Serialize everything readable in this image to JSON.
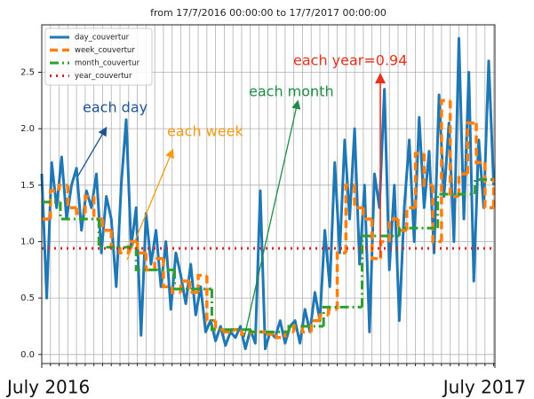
{
  "chart_data": {
    "type": "line",
    "title": "from 17/7/2016 00:00:00 to 17/7/2017 00:00:00",
    "xlim": [
      0,
      365
    ],
    "xticks": [
      {
        "value": 0,
        "label": "July 2016"
      },
      {
        "value": 365,
        "label": "July 2017"
      }
    ],
    "ylim": [
      -0.08,
      2.92
    ],
    "yticks": [
      {
        "value": 0,
        "label": "0.0"
      },
      0.5,
      {
        "value": 1,
        "label": "1.0"
      },
      1.5,
      {
        "value": 2,
        "label": "2.0"
      },
      2.5
    ],
    "grid": true,
    "legend": "upper left",
    "series": [
      {
        "name": "day_couvertur",
        "color": "#1f77b4",
        "style": "solid",
        "x": [
          0,
          4,
          8,
          12,
          16,
          20,
          24,
          28,
          32,
          36,
          40,
          44,
          48,
          52,
          56,
          60,
          64,
          68,
          72,
          76,
          80,
          84,
          88,
          92,
          96,
          100,
          104,
          108,
          112,
          116,
          120,
          124,
          128,
          132,
          136,
          140,
          144,
          148,
          152,
          156,
          160,
          164,
          168,
          172,
          176,
          180,
          184,
          188,
          192,
          196,
          200,
          204,
          208,
          212,
          216,
          220,
          224,
          228,
          232,
          236,
          240,
          244,
          248,
          252,
          256,
          260,
          264,
          268,
          272,
          276,
          280,
          284,
          288,
          292,
          296,
          300,
          304,
          308,
          312,
          316,
          320,
          324,
          328,
          332,
          336,
          340,
          344,
          348,
          352,
          356,
          360,
          364
        ],
        "values": [
          1.6,
          0.5,
          1.7,
          1.3,
          1.75,
          1.2,
          1.5,
          1.65,
          1.1,
          1.45,
          1.3,
          1.6,
          0.9,
          1.4,
          1.2,
          0.6,
          1.5,
          2.08,
          0.95,
          1.3,
          0.17,
          1.25,
          0.8,
          1.1,
          0.6,
          1.0,
          0.4,
          0.9,
          0.7,
          0.45,
          0.8,
          0.35,
          0.6,
          0.2,
          0.3,
          0.12,
          0.25,
          0.08,
          0.2,
          0.15,
          0.25,
          0.05,
          0.22,
          0.1,
          1.45,
          0.05,
          0.2,
          0.15,
          0.3,
          0.1,
          0.25,
          0.3,
          0.1,
          0.4,
          0.2,
          0.55,
          0.3,
          1.1,
          0.6,
          1.7,
          0.9,
          1.9,
          1.2,
          2.0,
          0.8,
          1.5,
          0.2,
          1.6,
          1.3,
          2.35,
          0.75,
          1.5,
          0.3,
          1.3,
          1.9,
          1.0,
          2.1,
          1.3,
          1.8,
          0.9,
          2.3,
          1.4,
          2.05,
          1.0,
          2.8,
          1.2,
          2.5,
          0.65,
          1.9,
          1.3,
          2.6,
          1.5
        ]
      },
      {
        "name": "week_couvertur",
        "color": "#ff7f0e",
        "style": "dashed",
        "x": [
          0,
          7,
          14,
          21,
          28,
          35,
          42,
          49,
          56,
          63,
          70,
          77,
          84,
          91,
          98,
          105,
          112,
          119,
          126,
          133,
          140,
          147,
          154,
          161,
          168,
          175,
          182,
          189,
          196,
          203,
          210,
          217,
          224,
          231,
          238,
          245,
          252,
          259,
          266,
          273,
          280,
          287,
          294,
          301,
          308,
          315,
          322,
          329,
          336,
          343,
          350,
          357,
          364
        ],
        "values": [
          1.2,
          1.45,
          1.5,
          1.3,
          1.25,
          1.4,
          1.2,
          1.1,
          0.95,
          0.9,
          1.0,
          0.9,
          0.75,
          0.85,
          0.6,
          0.55,
          0.65,
          0.55,
          0.7,
          0.3,
          0.22,
          0.2,
          0.22,
          0.18,
          0.2,
          0.2,
          0.18,
          0.15,
          0.2,
          0.25,
          0.2,
          0.3,
          0.35,
          0.4,
          0.9,
          1.5,
          1.3,
          1.2,
          0.85,
          1.0,
          1.2,
          1.1,
          1.3,
          1.78,
          1.5,
          1.0,
          2.25,
          1.4,
          1.6,
          2.05,
          1.7,
          1.3,
          1.55
        ]
      },
      {
        "name": "month_couvertur",
        "color": "#2ca02c",
        "style": "dashdot",
        "x": [
          0,
          15,
          46,
          76,
          107,
          137,
          168,
          199,
          227,
          258,
          288,
          319,
          349
        ],
        "values": [
          1.35,
          1.2,
          0.95,
          0.75,
          0.58,
          0.22,
          0.2,
          0.25,
          0.42,
          1.05,
          1.12,
          1.42,
          1.55
        ]
      },
      {
        "name": "year_couvertur",
        "color": "#d62728",
        "style": "dotted",
        "values": [
          0.94
        ]
      }
    ],
    "annotations": [
      {
        "text": "each day",
        "color": "#1f5596"
      },
      {
        "text": "each week",
        "color": "#f39c12"
      },
      {
        "text": "each month",
        "color": "#1e8c45"
      },
      {
        "text": "each year=0.94",
        "color": "#e8321e"
      }
    ]
  }
}
